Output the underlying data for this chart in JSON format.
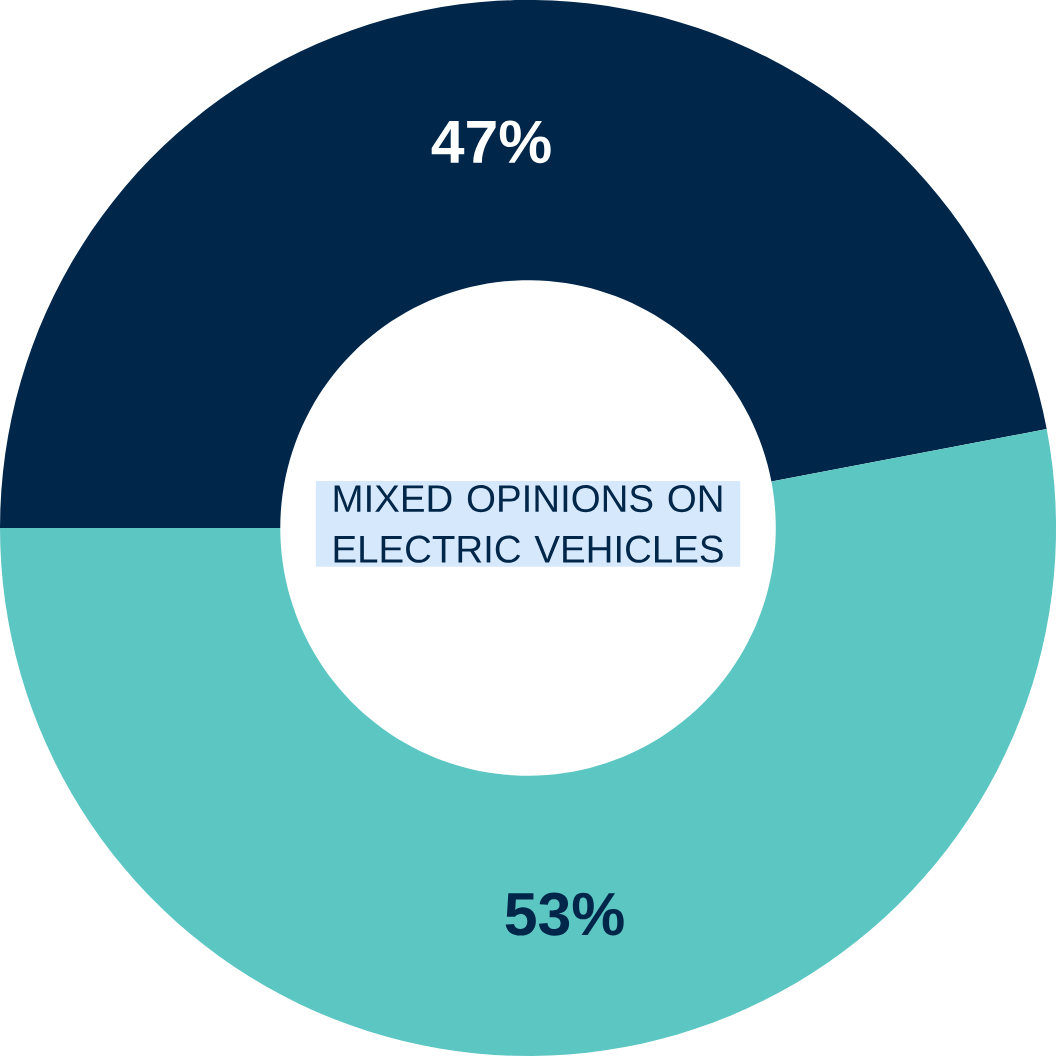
{
  "chart_data": {
    "type": "donut",
    "title": "MIXED OPINIONS ON ELECTRIC VEHICLES",
    "categories": [
      null,
      null
    ],
    "values": [
      47,
      53
    ],
    "colors": [
      "#00274a",
      "#5cc6c3"
    ],
    "value_labels": [
      "47%",
      "53%"
    ]
  }
}
